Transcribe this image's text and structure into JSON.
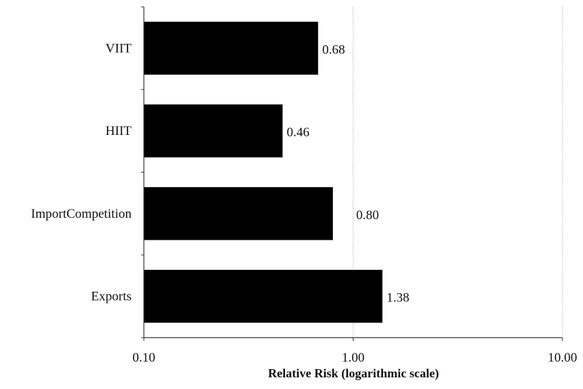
{
  "chart_data": {
    "type": "bar",
    "orientation": "horizontal",
    "categories": [
      "VIIT",
      "HIIT",
      "ImportCompetition",
      "Exports"
    ],
    "values": [
      0.68,
      0.46,
      0.8,
      1.38
    ],
    "value_labels": [
      "0.68",
      "0.46",
      "0.80",
      "1.38"
    ],
    "title": "",
    "xlabel": "Relative Risk (logarithmic scale)",
    "ylabel": "",
    "x_scale": "log",
    "xlim": [
      0.1,
      10
    ],
    "x_ticks": [
      0.1,
      1,
      10
    ],
    "x_tick_labels": [
      "0.10",
      "1.00",
      "10.00"
    ],
    "grid": "vertical dotted at major ticks",
    "legend": "none",
    "bar_color": "#000000"
  }
}
